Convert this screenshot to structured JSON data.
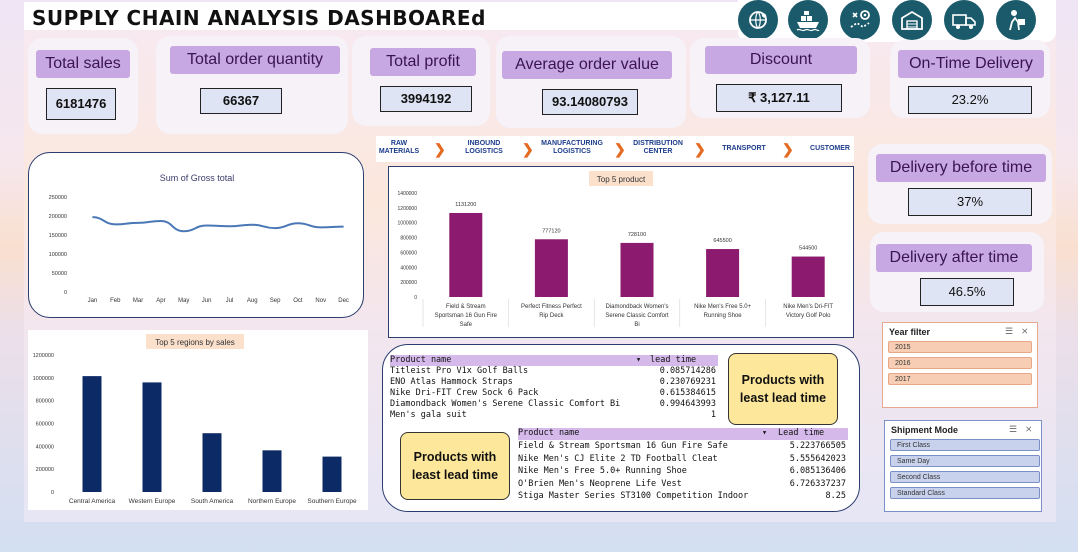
{
  "title": "SUPPLY CHAIN ANALYSIS DASHBOAREd",
  "icons": [
    "globe-leaf-icon",
    "cargo-ship-icon",
    "route-map-icon",
    "warehouse-icon",
    "delivery-truck-icon",
    "delivery-person-icon"
  ],
  "kpis": {
    "total_sales": {
      "label": "Total sales",
      "value": "6181476"
    },
    "total_order_quantity": {
      "label": "Total order quantity",
      "value": "66367"
    },
    "total_profit": {
      "label": "Total profit",
      "value": "3994192"
    },
    "average_order_value": {
      "label": "Average  order value",
      "value": "93.14080793"
    },
    "discount": {
      "label": "Discount",
      "value": "₹ 3,127.11"
    },
    "on_time_delivery": {
      "label": "On-Time Delivery",
      "value": "23.2%"
    },
    "delivery_before_time": {
      "label": "Delivery before time",
      "value": "37%"
    },
    "delivery_after_time": {
      "label": "Delivery after time",
      "value": "46.5%"
    }
  },
  "chain_steps": [
    {
      "line1": "RAW",
      "line2": "MATERIALS"
    },
    {
      "line1": "INBOUND",
      "line2": "LOGISTICS"
    },
    {
      "line1": "MANUFACTURING",
      "line2": "LOGISTICS"
    },
    {
      "line1": "DISTRIBUTION",
      "line2": "CENTER"
    },
    {
      "line1": "TRANSPORT",
      "line2": ""
    },
    {
      "line1": "CUSTOMER",
      "line2": ""
    }
  ],
  "colors": {
    "kpi_title_bg": "#c8a8e2",
    "line_series": "#4a78b6",
    "product_bars": "#8c1a6e",
    "region_bars": "#0c2a66",
    "accent_orange": "#e46a22",
    "callout_bg": "#fde79a"
  },
  "chart_data": [
    {
      "type": "line",
      "title": "Sum of Gross total",
      "categories": [
        "Jan",
        "Feb",
        "Mar",
        "Apr",
        "May",
        "Jun",
        "Jul",
        "Aug",
        "Sep",
        "Oct",
        "Nov",
        "Dec"
      ],
      "values": [
        197000,
        178000,
        182000,
        187000,
        160000,
        175000,
        173000,
        177000,
        168000,
        181000,
        170000,
        172000
      ],
      "yticks": [
        "0",
        "50000",
        "100000",
        "150000",
        "200000",
        "250000"
      ],
      "ylim": [
        0,
        250000
      ],
      "grid": false
    },
    {
      "type": "bar",
      "title": "Top 5 product",
      "categories": [
        "Field & Stream Sportsman 16 Gun Fire Safe",
        "Perfect Fitness Perfect Rip Deck",
        "Diamondback Women's Serene Classic Comfort Bi",
        "Nike Men's Free 5.0+ Running Shoe",
        "Nike Men's Dri-FIT Victory Golf Polo"
      ],
      "label_lines": [
        [
          "Field & Stream",
          "Sportsman 16 Gun Fire",
          "Safe"
        ],
        [
          "Perfect Fitness Perfect",
          "Rip Deck"
        ],
        [
          "Diamondback Women's",
          "Serene Classic Comfort",
          "Bi"
        ],
        [
          "Nike Men's Free 5.0+",
          "Running Shoe"
        ],
        [
          "Nike Men's Dri-FIT",
          "Victory Golf Polo"
        ]
      ],
      "values": [
        1131200,
        777120,
        728100,
        645500,
        544500
      ],
      "data_labels": [
        "1131200",
        "777120",
        "728100",
        "645500",
        "544500"
      ],
      "yticks": [
        "0",
        "200000",
        "400000",
        "600000",
        "800000",
        "1000000",
        "1200000",
        "1400000"
      ],
      "ylim": [
        0,
        1400000
      ],
      "grid": false
    },
    {
      "type": "bar",
      "title": "Top 5 regions  by sales",
      "categories": [
        "Central America",
        "Western Europe",
        "South America",
        "Northern Europe",
        "Southern Europe"
      ],
      "values": [
        1015000,
        960000,
        515000,
        365000,
        310000
      ],
      "yticks": [
        "0",
        "200000",
        "400000",
        "600000",
        "800000",
        "1000000",
        "1200000"
      ],
      "ylim": [
        0,
        1200000
      ],
      "grid": false
    }
  ],
  "highest_lead_table": {
    "headers": [
      "Product name",
      "lead time"
    ],
    "rows": [
      [
        "Titleist Pro V1x Golf Balls",
        "0.085714286"
      ],
      [
        "ENO Atlas Hammock Straps",
        "0.230769231"
      ],
      [
        "Nike Dri-FIT Crew Sock 6 Pack",
        "0.615384615"
      ],
      [
        "Diamondback Women's Serene Classic Comfort Bi",
        "0.994643993"
      ],
      [
        "Men's gala suit",
        "1"
      ]
    ],
    "callout": "Products with least lead time"
  },
  "lowest_lead_table": {
    "headers": [
      "Product name",
      "Lead time"
    ],
    "rows": [
      [
        "Field & Stream Sportsman 16 Gun Fire Safe",
        "5.223766505"
      ],
      [
        "Nike Men's CJ Elite 2 TD Football Cleat",
        "5.555642023"
      ],
      [
        "Nike Men's Free 5.0+ Running Shoe",
        "6.085136406"
      ],
      [
        "O'Brien Men's Neoprene Life Vest",
        "6.726337237"
      ],
      [
        "Stiga Master Series ST3100 Competition Indoor",
        "8.25"
      ]
    ],
    "callout": "Products with least lead time"
  },
  "year_filter": {
    "title": "Year filter",
    "items": [
      "2015",
      "2016",
      "2017"
    ]
  },
  "shipment_filter": {
    "title": "Shipment Mode",
    "items": [
      "First Class",
      "Same Day",
      "Second Class",
      "Standard Class"
    ]
  }
}
